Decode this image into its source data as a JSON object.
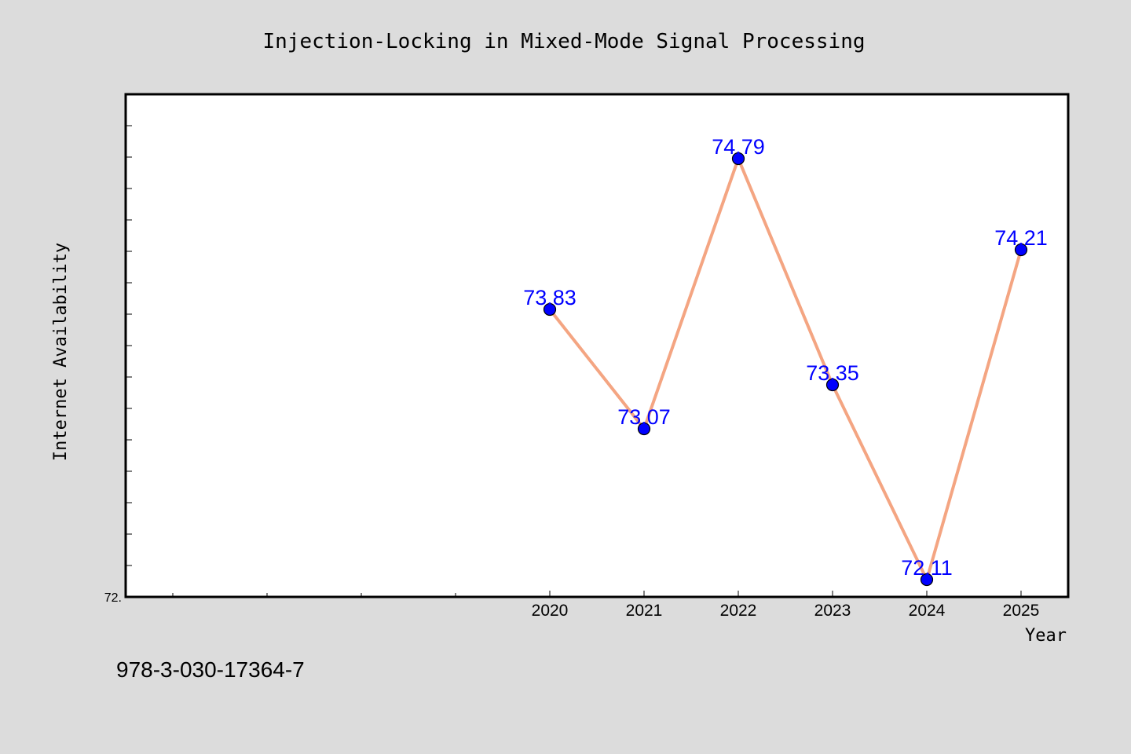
{
  "chart_data": {
    "type": "line",
    "title": "Injection-Locking in Mixed-Mode Signal Processing",
    "xlabel": "Year",
    "ylabel": "Internet Availability",
    "x": [
      2020,
      2021,
      2022,
      2023,
      2024,
      2025
    ],
    "xlim": [
      2015.5,
      2025.5
    ],
    "ylim": [
      72.0,
      75.2
    ],
    "y_tick_label": "72.",
    "series": [
      {
        "values": [
          73.83,
          73.07,
          74.79,
          73.35,
          72.11,
          74.21
        ],
        "labels": [
          "73.83",
          "73.07",
          "74.79",
          "73.35",
          "72.11",
          "74.21"
        ],
        "line_color": "#f4a582",
        "marker_color": "#0000ff"
      }
    ],
    "grid": false,
    "legend": "none"
  },
  "footer_text": "978-3-030-17364-7",
  "colors": {
    "background": "#dcdcdc",
    "plot_background": "#ffffff",
    "line": "#f4a582",
    "marker": "#0000ff",
    "data_label": "#0000ff"
  }
}
